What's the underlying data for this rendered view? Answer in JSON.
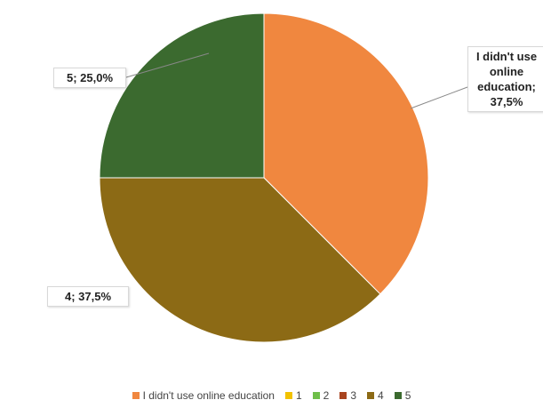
{
  "chart_data": {
    "type": "pie",
    "categories": [
      "I didn't use online education",
      "1",
      "2",
      "3",
      "4",
      "5"
    ],
    "values": [
      37.5,
      0,
      0,
      0,
      37.5,
      25
    ],
    "value_labels": [
      "I didn't use online education; 37,5%",
      null,
      null,
      null,
      "4; 37,5%",
      "5; 25,0%"
    ],
    "colors": [
      "#f0873f",
      "#f2c200",
      "#6fbf4a",
      "#a8441f",
      "#8c6a15",
      "#3b6a2f"
    ]
  }
}
